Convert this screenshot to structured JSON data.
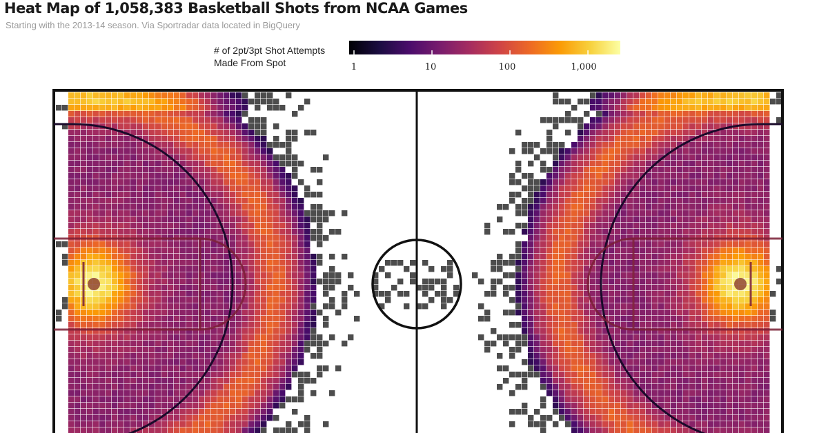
{
  "chart_data": {
    "type": "heatmap",
    "title": "Heat Map of 1,058,383 Basketball Shots from NCAA Games",
    "subtitle": "Starting with the 2013-14 season. Via Sportradar data located in BigQuery",
    "legend": {
      "title_lines": [
        "# of 2pt/3pt Shot Attempts",
        "Made From Spot"
      ],
      "scale": "log",
      "range": [
        1,
        3000
      ],
      "tick_values": [
        1,
        10,
        100,
        1000
      ],
      "tick_labels": [
        "1",
        "10",
        "100",
        "1,000"
      ],
      "colormap": "inferno",
      "colors": [
        "#000004",
        "#1b0c41",
        "#4a0c6b",
        "#781c6d",
        "#a52c60",
        "#cf4446",
        "#ed6925",
        "#fb9b06",
        "#f7d13d",
        "#fcffa4"
      ]
    },
    "total_shots": 1058383,
    "court": "full NCAA court, both halves, hoops at left and right ends",
    "hotspots": [
      {
        "name": "left basket",
        "approx_count": 1000
      },
      {
        "name": "right basket",
        "approx_count": 1000
      },
      {
        "name": "left three-point arc",
        "approx_count": 200
      },
      {
        "name": "right three-point arc",
        "approx_count": 200
      }
    ],
    "colors": {
      "court_lines": "#111111",
      "paint_lines": "#7a1f35",
      "sparse_cell": "#555555",
      "empty": "#ffffff"
    }
  }
}
